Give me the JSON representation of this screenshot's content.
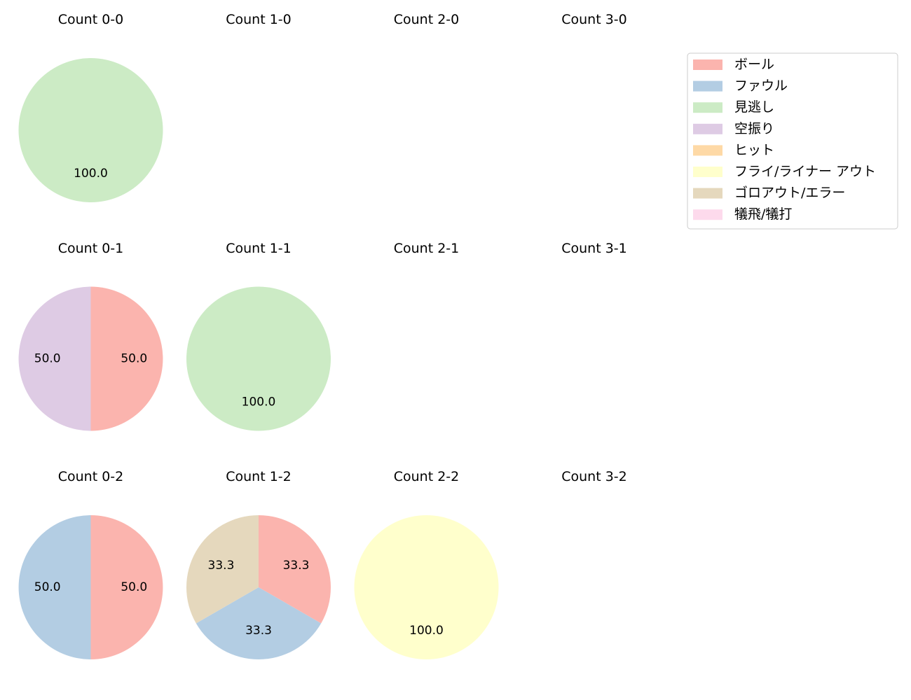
{
  "legend": {
    "entries": [
      {
        "label": "ボール",
        "color": "#fbb4ae"
      },
      {
        "label": "ファウル",
        "color": "#b3cde3"
      },
      {
        "label": "見逃し",
        "color": "#ccebc5"
      },
      {
        "label": "空振り",
        "color": "#decbe4"
      },
      {
        "label": "ヒット",
        "color": "#fed9a6"
      },
      {
        "label": "フライ/ライナー アウト",
        "color": "#ffffcc"
      },
      {
        "label": "ゴロアウト/エラー",
        "color": "#e5d8bd"
      },
      {
        "label": "犠飛/犠打",
        "color": "#fddaec"
      }
    ]
  },
  "chart_data": [
    {
      "type": "pie",
      "title": "Count 0-0",
      "slices": [
        {
          "category": "見逃し",
          "value": 100.0
        }
      ]
    },
    {
      "type": "pie",
      "title": "Count 1-0",
      "slices": []
    },
    {
      "type": "pie",
      "title": "Count 2-0",
      "slices": []
    },
    {
      "type": "pie",
      "title": "Count 3-0",
      "slices": []
    },
    {
      "type": "pie",
      "title": "Count 0-1",
      "slices": [
        {
          "category": "ボール",
          "value": 50.0
        },
        {
          "category": "空振り",
          "value": 50.0
        }
      ]
    },
    {
      "type": "pie",
      "title": "Count 1-1",
      "slices": [
        {
          "category": "見逃し",
          "value": 100.0
        }
      ]
    },
    {
      "type": "pie",
      "title": "Count 2-1",
      "slices": []
    },
    {
      "type": "pie",
      "title": "Count 3-1",
      "slices": []
    },
    {
      "type": "pie",
      "title": "Count 0-2",
      "slices": [
        {
          "category": "ボール",
          "value": 50.0
        },
        {
          "category": "ファウル",
          "value": 50.0
        }
      ]
    },
    {
      "type": "pie",
      "title": "Count 1-2",
      "slices": [
        {
          "category": "ボール",
          "value": 33.3
        },
        {
          "category": "ファウル",
          "value": 33.3
        },
        {
          "category": "ゴロアウト/エラー",
          "value": 33.3
        }
      ]
    },
    {
      "type": "pie",
      "title": "Count 2-2",
      "slices": [
        {
          "category": "フライ/ライナー アウト",
          "value": 100.0
        }
      ]
    },
    {
      "type": "pie",
      "title": "Count 3-2",
      "slices": []
    }
  ]
}
